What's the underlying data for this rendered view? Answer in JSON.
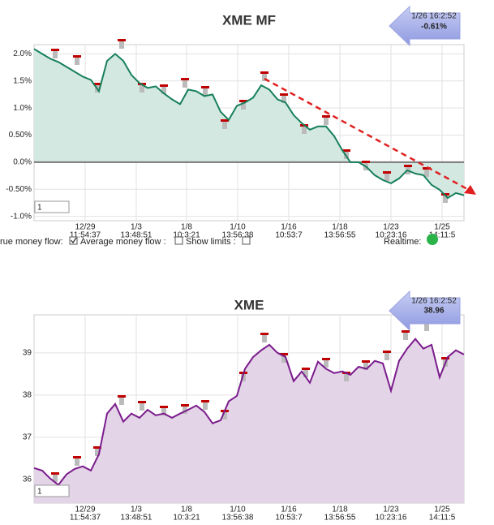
{
  "chart_data": [
    {
      "type": "area",
      "title": "XME MF",
      "color": "#17805a",
      "fill": "#d3e8e1",
      "zero_line": true,
      "grid": true,
      "xlim": [
        0,
        53
      ],
      "ylim": [
        -1.08,
        2.17
      ],
      "yticks": [
        {
          "value": 2,
          "label": "2.0%"
        },
        {
          "value": 1.5,
          "label": "1.5%"
        },
        {
          "value": 1,
          "label": "1.0%"
        },
        {
          "value": 0.5,
          "label": "0.50%"
        },
        {
          "value": 0,
          "label": "0.0%"
        },
        {
          "value": -0.5,
          "label": "-0.50%"
        },
        {
          "value": -1,
          "label": "-1.0%"
        }
      ],
      "xticks": [
        {
          "value": 6.3,
          "label": "12/29",
          "time": "11:54:37"
        },
        {
          "value": 12.6,
          "label": "1/3",
          "time": "13:48:51"
        },
        {
          "value": 18.8,
          "label": "1/8",
          "time": "10:3:21"
        },
        {
          "value": 25.1,
          "label": "1/10",
          "time": "13:56:38"
        },
        {
          "value": 31.4,
          "label": "1/16",
          "time": "10:53:7"
        },
        {
          "value": 37.7,
          "label": "1/18",
          "time": "13:56:55"
        },
        {
          "value": 44,
          "label": "1/23",
          "time": "10:23:16"
        },
        {
          "value": 50.3,
          "label": "1/25",
          "time": "14:11:5"
        }
      ],
      "values": [
        2.09,
        2.0,
        1.91,
        1.85,
        1.76,
        1.67,
        1.58,
        1.52,
        1.31,
        1.87,
        2.0,
        1.87,
        1.61,
        1.46,
        1.37,
        1.4,
        1.27,
        1.16,
        1.07,
        1.34,
        1.31,
        1.22,
        1.25,
        0.93,
        0.78,
        1.04,
        1.1,
        1.19,
        1.42,
        1.34,
        1.16,
        1.1,
        0.87,
        0.72,
        0.6,
        0.66,
        0.66,
        0.48,
        0.22,
        0.0,
        0.0,
        -0.09,
        -0.24,
        -0.33,
        -0.39,
        -0.3,
        -0.15,
        -0.21,
        -0.24,
        -0.42,
        -0.51,
        -0.66,
        -0.57,
        -0.61
      ],
      "badge_date": "1/26 16:2:52",
      "badge_value": "-0.61%"
    },
    {
      "type": "area",
      "title": "XME",
      "color": "#7a1b8c",
      "fill": "#e4d4e7",
      "zero_line": false,
      "grid": true,
      "xlim": [
        0,
        53
      ],
      "ylim": [
        35.44,
        39.9
      ],
      "yticks": [
        36,
        37,
        38,
        39
      ],
      "xticks": [
        {
          "value": 6.3,
          "label": "12/29",
          "time": "11:54:37"
        },
        {
          "value": 12.6,
          "label": "1/3",
          "time": "13:48:51"
        },
        {
          "value": 18.8,
          "label": "1/8",
          "time": "10:3:21"
        },
        {
          "value": 25.1,
          "label": "1/10",
          "time": "13:56:38"
        },
        {
          "value": 31.4,
          "label": "1/16",
          "time": "10:53:7"
        },
        {
          "value": 37.7,
          "label": "1/18",
          "time": "13:56:55"
        },
        {
          "value": 44,
          "label": "1/23",
          "time": "10:23:16"
        },
        {
          "value": 50.3,
          "label": "1/25",
          "time": "14:11:5"
        }
      ],
      "values": [
        36.27,
        36.21,
        36.02,
        35.87,
        36.12,
        36.25,
        36.31,
        36.21,
        36.6,
        37.56,
        37.79,
        37.37,
        37.56,
        37.46,
        37.65,
        37.52,
        37.56,
        37.46,
        37.56,
        37.65,
        37.75,
        37.6,
        37.33,
        37.4,
        37.85,
        37.98,
        38.62,
        38.9,
        39.06,
        39.19,
        39.0,
        38.9,
        38.33,
        38.56,
        38.29,
        38.79,
        38.62,
        38.52,
        38.56,
        38.48,
        38.67,
        38.62,
        38.81,
        38.75,
        38.1,
        38.81,
        39.1,
        39.33,
        39.1,
        39.19,
        38.42,
        38.9,
        39.06,
        38.96
      ],
      "badge_date": "1/26 16:2:52",
      "badge_value": "38.96"
    }
  ],
  "ui": {
    "input_value": "1",
    "true_money_flow": "rue money flow:",
    "average_money_flow": "Average money flow :",
    "show_limits": "Show limits :",
    "realtime": "Realtime:"
  }
}
